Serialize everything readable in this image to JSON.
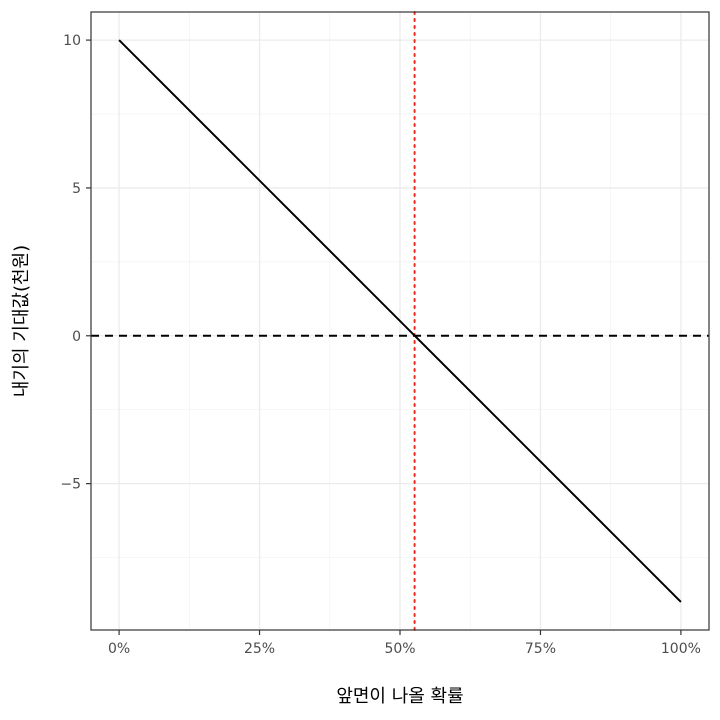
{
  "chart_data": {
    "type": "line",
    "title": "",
    "xlabel": "앞면이 나올 확률",
    "ylabel": "내기의 기대값(천원)",
    "xlim": [
      -0.05,
      1.05
    ],
    "ylim": [
      -9.95,
      10.95
    ],
    "x_ticks": [
      0,
      0.25,
      0.5,
      0.75,
      1.0
    ],
    "x_tick_labels": [
      "0%",
      "25%",
      "50%",
      "75%",
      "100%"
    ],
    "y_ticks": [
      10,
      5,
      0,
      -5
    ],
    "y_tick_labels": [
      "10",
      "5",
      "0",
      "−5"
    ],
    "series": [
      {
        "x": [
          0,
          1.0
        ],
        "y": [
          10,
          -9
        ],
        "color": "#000000"
      }
    ],
    "hline": {
      "y": 0,
      "style": "dashed",
      "color": "#000000"
    },
    "vline": {
      "x": 0.526,
      "style": "dotted",
      "color": "#e8291c"
    },
    "grid": true,
    "theme": "bw"
  }
}
